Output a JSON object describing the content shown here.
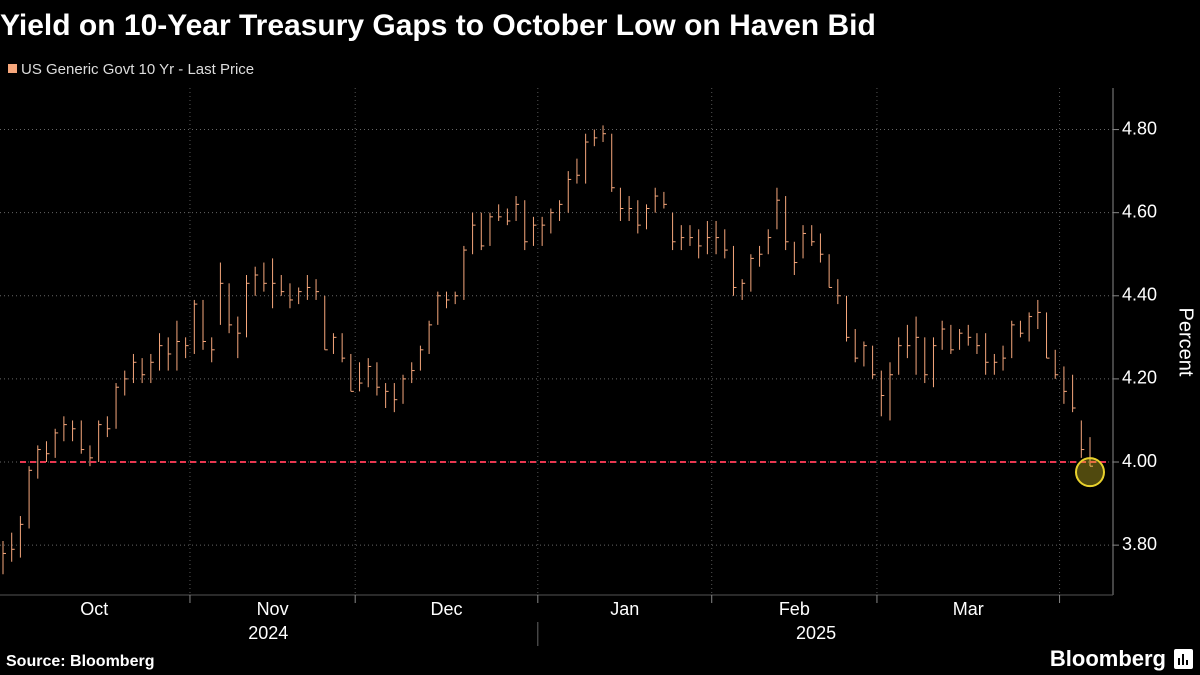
{
  "chart_data": {
    "type": "ohlc",
    "title": "Yield on 10-Year Treasury Gaps to October Low on Haven Bid",
    "legend": "US Generic Govt 10 Yr - Last Price",
    "color": "#f6a77c",
    "y_label": "Percent",
    "ylim": [
      3.68,
      4.9
    ],
    "yticks": [
      {
        "value": 3.8,
        "label": "3.80"
      },
      {
        "value": 4.0,
        "label": "4.00"
      },
      {
        "value": 4.2,
        "label": "4.20"
      },
      {
        "value": 4.4,
        "label": "4.40"
      },
      {
        "value": 4.6,
        "label": "4.60"
      },
      {
        "value": 4.8,
        "label": "4.80"
      }
    ],
    "grid": true,
    "reference_value": 4.0,
    "reference_color": "#e8364f",
    "source": "Source: Bloomberg",
    "brand": "Bloomberg",
    "years": [
      {
        "label": "2024",
        "months": [
          {
            "label": "Oct",
            "high": [
              3.81,
              3.83,
              3.87,
              3.99,
              4.04,
              4.05,
              4.08,
              4.11,
              4.1,
              4.1,
              4.04,
              4.1,
              4.11,
              4.19,
              4.22,
              4.26,
              4.25,
              4.26,
              4.31,
              4.3,
              4.34,
              4.3
            ],
            "low": [
              3.73,
              3.76,
              3.77,
              3.84,
              3.96,
              4.0,
              4.01,
              4.05,
              4.05,
              4.02,
              3.99,
              4.0,
              4.06,
              4.08,
              4.16,
              4.19,
              4.19,
              4.19,
              4.22,
              4.22,
              4.22,
              4.25
            ],
            "close": [
              3.78,
              3.79,
              3.85,
              3.98,
              4.03,
              4.02,
              4.07,
              4.09,
              4.08,
              4.03,
              4.01,
              4.09,
              4.08,
              4.18,
              4.2,
              4.24,
              4.21,
              4.24,
              4.28,
              4.26,
              4.29,
              4.28
            ]
          },
          {
            "label": "Nov",
            "high": [
              4.39,
              4.39,
              4.3,
              4.48,
              4.43,
              4.35,
              4.45,
              4.47,
              4.48,
              4.49,
              4.45,
              4.43,
              4.42,
              4.45,
              4.44,
              4.4,
              4.31,
              4.31,
              4.26
            ],
            "low": [
              4.26,
              4.27,
              4.24,
              4.33,
              4.31,
              4.25,
              4.3,
              4.4,
              4.41,
              4.37,
              4.4,
              4.37,
              4.38,
              4.39,
              4.39,
              4.27,
              4.26,
              4.24,
              4.17
            ],
            "close": [
              4.38,
              4.29,
              4.27,
              4.43,
              4.33,
              4.31,
              4.43,
              4.45,
              4.43,
              4.43,
              4.41,
              4.39,
              4.41,
              4.42,
              4.41,
              4.27,
              4.3,
              4.25,
              4.17
            ]
          },
          {
            "label": "Dec",
            "high": [
              4.24,
              4.25,
              4.24,
              4.19,
              4.19,
              4.21,
              4.24,
              4.28,
              4.34,
              4.41,
              4.41,
              4.41,
              4.52,
              4.6,
              4.6,
              4.6,
              4.62,
              4.61,
              4.64,
              4.63,
              4.59
            ],
            "low": [
              4.17,
              4.18,
              4.16,
              4.13,
              4.12,
              4.14,
              4.19,
              4.22,
              4.26,
              4.33,
              4.37,
              4.38,
              4.39,
              4.5,
              4.51,
              4.52,
              4.58,
              4.57,
              4.58,
              4.51,
              4.52
            ],
            "close": [
              4.19,
              4.23,
              4.18,
              4.17,
              4.15,
              4.2,
              4.22,
              4.27,
              4.33,
              4.4,
              4.39,
              4.4,
              4.51,
              4.57,
              4.52,
              4.59,
              4.59,
              4.58,
              4.62,
              4.53,
              4.57
            ]
          }
        ]
      },
      {
        "label": "2025",
        "months": [
          {
            "label": "Jan",
            "high": [
              4.59,
              4.61,
              4.63,
              4.7,
              4.73,
              4.79,
              4.8,
              4.81,
              4.79,
              4.66,
              4.64,
              4.63,
              4.62,
              4.66,
              4.65,
              4.6,
              4.57,
              4.57,
              4.56,
              4.58
            ],
            "low": [
              4.52,
              4.55,
              4.58,
              4.6,
              4.67,
              4.67,
              4.76,
              4.77,
              4.65,
              4.58,
              4.58,
              4.55,
              4.56,
              4.6,
              4.61,
              4.51,
              4.51,
              4.52,
              4.49,
              4.5
            ],
            "close": [
              4.57,
              4.6,
              4.62,
              4.68,
              4.69,
              4.77,
              4.78,
              4.79,
              4.66,
              4.61,
              4.61,
              4.57,
              4.61,
              4.64,
              4.62,
              4.53,
              4.54,
              4.54,
              4.52,
              4.54
            ]
          },
          {
            "label": "Feb",
            "high": [
              4.58,
              4.56,
              4.52,
              4.44,
              4.5,
              4.52,
              4.56,
              4.66,
              4.64,
              4.53,
              4.57,
              4.57,
              4.55,
              4.5,
              4.44,
              4.4,
              4.32,
              4.29,
              4.28
            ],
            "low": [
              4.5,
              4.49,
              4.4,
              4.39,
              4.41,
              4.47,
              4.5,
              4.56,
              4.51,
              4.45,
              4.49,
              4.52,
              4.48,
              4.42,
              4.38,
              4.29,
              4.24,
              4.23,
              4.2
            ],
            "close": [
              4.54,
              4.51,
              4.42,
              4.43,
              4.49,
              4.5,
              4.54,
              4.63,
              4.53,
              4.48,
              4.55,
              4.53,
              4.5,
              4.42,
              4.4,
              4.3,
              4.25,
              4.28,
              4.21
            ]
          },
          {
            "label": "Mar",
            "high": [
              4.22,
              4.24,
              4.3,
              4.33,
              4.35,
              4.3,
              4.3,
              4.34,
              4.33,
              4.32,
              4.33,
              4.31,
              4.31,
              4.26,
              4.28,
              4.34,
              4.34,
              4.36,
              4.39,
              4.36,
              4.27
            ],
            "low": [
              4.11,
              4.1,
              4.21,
              4.25,
              4.21,
              4.19,
              4.18,
              4.27,
              4.26,
              4.27,
              4.28,
              4.26,
              4.21,
              4.21,
              4.22,
              4.25,
              4.3,
              4.29,
              4.32,
              4.25,
              4.2
            ],
            "close": [
              4.16,
              4.21,
              4.28,
              4.28,
              4.3,
              4.21,
              4.28,
              4.32,
              4.27,
              4.31,
              4.3,
              4.28,
              4.24,
              4.24,
              4.25,
              4.33,
              4.31,
              4.35,
              4.36,
              4.25,
              4.21
            ]
          },
          {
            "label": null,
            "high": [
              4.23,
              4.21,
              4.1,
              4.06
            ],
            "low": [
              4.14,
              4.12,
              4.01,
              3.99
            ],
            "close": [
              4.17,
              4.13,
              4.03,
              3.99
            ]
          }
        ]
      }
    ]
  }
}
